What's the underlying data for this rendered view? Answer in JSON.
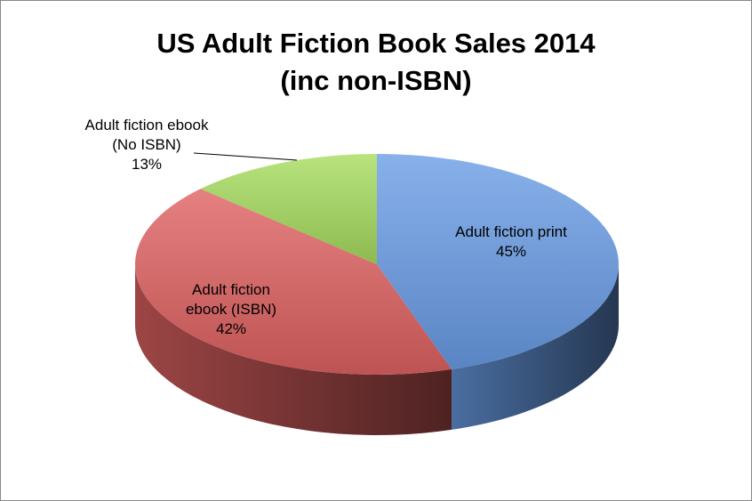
{
  "chart_data": {
    "type": "pie",
    "title": "US Adult Fiction Book Sales 2014 (inc non-ISBN)",
    "categories": [
      "Adult fiction print",
      "Adult fiction ebook (ISBN)",
      "Adult fiction ebook (No ISBN)"
    ],
    "values": [
      45,
      42,
      13
    ],
    "value_labels": [
      "45%",
      "42%",
      "13%"
    ],
    "colors": [
      "#6a9de6",
      "#e06262",
      "#a6dc5e"
    ]
  }
}
